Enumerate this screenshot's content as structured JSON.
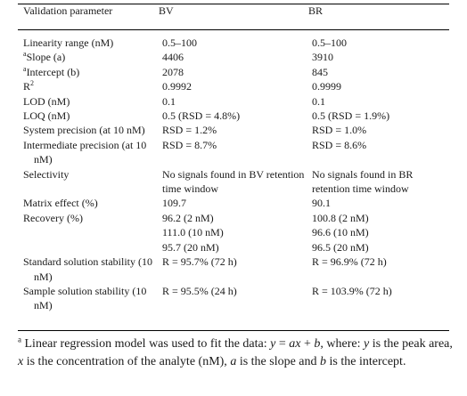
{
  "table": {
    "headers": [
      "Validation parameter",
      "BV",
      "BR"
    ],
    "rows": [
      {
        "param": "Linearity range (nM)",
        "bv": "0.5–100",
        "br": "0.5–100"
      },
      {
        "marker": "a",
        "param": "Slope (a)",
        "bv": "4406",
        "br": "3910"
      },
      {
        "marker": "a",
        "param": "Intercept (b)",
        "bv": "2078",
        "br": "845"
      },
      {
        "param": "R",
        "param_sup": "2",
        "bv": "0.9992",
        "br": "0.9999"
      },
      {
        "param": "LOD (nM)",
        "bv": "0.1",
        "br": "0.1"
      },
      {
        "param": "LOQ (nM)",
        "bv": "0.5 (RSD = 4.8%)",
        "br": "0.5 (RSD = 1.9%)"
      },
      {
        "param": "System precision (at 10 nM)",
        "bv": "RSD = 1.2%",
        "br": "RSD = 1.0%"
      },
      {
        "param": "Intermediate precision (at 10 nM)",
        "bv": "RSD = 8.7%",
        "br": "RSD = 8.6%"
      },
      {
        "param": "Selectivity",
        "bv": "No signals found in BV retention time window",
        "br": "No signals found in BR retention time window"
      },
      {
        "param": "Matrix effect (%)",
        "bv": "109.7",
        "br": "90.1"
      },
      {
        "param": "Recovery (%)",
        "bv": [
          "96.2 (2 nM)",
          "111.0 (10 nM)",
          "95.7 (20 nM)"
        ],
        "br": [
          "100.8 (2 nM)",
          "96.6 (10 nM)",
          "96.5 (20 nM)"
        ]
      },
      {
        "param": "Standard solution stability (10 nM)",
        "bv": "R = 95.7% (72 h)",
        "br": "R = 96.9% (72 h)"
      },
      {
        "param": "Sample solution stability (10 nM)",
        "bv": "R = 95.5% (24 h)",
        "br": "R = 103.9% (72 h)"
      }
    ]
  },
  "footnote": {
    "marker": "a",
    "t1": " Linear regression model was used to fit the data: ",
    "eq_y": "y",
    "eq_mid1": " = ",
    "eq_a": "ax",
    "eq_mid2": " + ",
    "eq_b": "b",
    "t2": ", where: ",
    "v_y": "y",
    "t3": " is the peak area, ",
    "v_x": "x",
    "t4": " is the concentration of the analyte (nM), ",
    "v_a": "a",
    "t5": " is the slope and ",
    "v_b": "b",
    "t6": " is the intercept."
  }
}
